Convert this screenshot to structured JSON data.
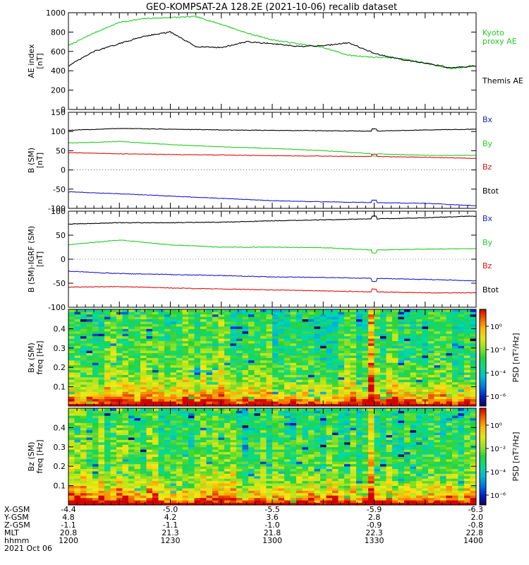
{
  "title": "GEO-KOMPSAT-2A 128.2E (2021-10-06) recalib dataset",
  "colors": {
    "black": "#000000",
    "green": "#22cc22",
    "red": "#dd1111",
    "blue": "#1a1ad0"
  },
  "chart_data": [
    {
      "type": "line",
      "ylabel": "AE index\n[nT]",
      "ylim": [
        0,
        1000
      ],
      "yticks": [
        "0",
        "200",
        "400",
        "600",
        "800",
        "1000"
      ],
      "x": [
        0,
        15,
        30,
        45,
        60,
        75,
        90,
        105,
        120,
        135,
        150,
        165,
        180,
        195,
        210,
        225,
        240
      ],
      "legend": [
        {
          "text": "Kyoto\nproxy AE",
          "color": "green"
        },
        {
          "text": "Themis AE",
          "color": "black"
        }
      ],
      "series": [
        {
          "name": "Kyoto proxy AE",
          "color": "green",
          "values": [
            660,
            790,
            900,
            940,
            950,
            960,
            880,
            790,
            720,
            680,
            640,
            560,
            540,
            530,
            480,
            420,
            450
          ]
        },
        {
          "name": "Themis AE",
          "color": "black",
          "values": [
            450,
            600,
            680,
            760,
            800,
            650,
            640,
            700,
            680,
            650,
            660,
            690,
            580,
            520,
            480,
            430,
            450
          ]
        }
      ]
    },
    {
      "type": "line",
      "ylabel": "B (SM)\n[nT]",
      "ylim": [
        -100,
        150
      ],
      "yticks": [
        "-100",
        "-50",
        "0",
        "50",
        "100",
        "150"
      ],
      "x": [
        0,
        30,
        60,
        90,
        120,
        150,
        180,
        210,
        240
      ],
      "legend": [
        {
          "text": "Bx",
          "color": "blue"
        },
        {
          "text": "By",
          "color": "green"
        },
        {
          "text": "Bz",
          "color": "red"
        },
        {
          "text": "Btot",
          "color": "black"
        }
      ],
      "series": [
        {
          "name": "Btot",
          "color": "black",
          "values": [
            103,
            108,
            106,
            104,
            103,
            102,
            101,
            104,
            106
          ]
        },
        {
          "name": "By",
          "color": "green",
          "values": [
            70,
            74,
            66,
            60,
            56,
            50,
            42,
            38,
            38
          ]
        },
        {
          "name": "Bz",
          "color": "red",
          "values": [
            45,
            42,
            40,
            39,
            37,
            36,
            35,
            33,
            30
          ]
        },
        {
          "name": "Bx",
          "color": "blue",
          "values": [
            -57,
            -62,
            -68,
            -74,
            -80,
            -83,
            -85,
            -87,
            -93
          ]
        }
      ]
    },
    {
      "type": "line",
      "ylabel": "B (SM)-IGRF (SM)\n[nT]",
      "ylim": [
        -100,
        100
      ],
      "yticks": [
        "-100",
        "-50",
        "0",
        "50",
        "100"
      ],
      "x": [
        0,
        30,
        60,
        90,
        120,
        150,
        180,
        210,
        240
      ],
      "legend": [
        {
          "text": "Bx",
          "color": "blue"
        },
        {
          "text": "By",
          "color": "green"
        },
        {
          "text": "Bz",
          "color": "red"
        },
        {
          "text": "Btot",
          "color": "black"
        }
      ],
      "series": [
        {
          "name": "Btot",
          "color": "black",
          "values": [
            73,
            76,
            76,
            77,
            80,
            82,
            84,
            86,
            90
          ]
        },
        {
          "name": "By",
          "color": "green",
          "values": [
            30,
            40,
            30,
            25,
            25,
            24,
            19,
            21,
            22
          ]
        },
        {
          "name": "Bx",
          "color": "blue",
          "values": [
            -25,
            -30,
            -32,
            -34,
            -37,
            -38,
            -40,
            -42,
            -45
          ]
        },
        {
          "name": "Bz",
          "color": "red",
          "values": [
            -58,
            -57,
            -60,
            -62,
            -64,
            -66,
            -68,
            -70,
            -70
          ]
        }
      ]
    },
    {
      "type": "heatmap",
      "ylabel": "Bx (SM)\nfreq [Hz]",
      "ylim": [
        0,
        0.5
      ],
      "yticks": [
        "0.1",
        "0.2",
        "0.3",
        "0.4"
      ],
      "colorbar": {
        "label": "PSD [nT²/Hz]",
        "ticks": [
          "10⁰",
          "10⁻²",
          "10⁻⁴",
          "10⁻⁶"
        ]
      }
    },
    {
      "type": "heatmap",
      "ylabel": "Bz (SM)\nfreq [Hz]",
      "ylim": [
        0,
        0.5
      ],
      "yticks": [
        "0.1",
        "0.2",
        "0.3",
        "0.4"
      ],
      "colorbar": {
        "label": "PSD [nT²/Hz]",
        "ticks": [
          "10⁰",
          "10⁻²",
          "10⁻⁴",
          "10⁻⁶"
        ]
      }
    }
  ],
  "ephemeris": {
    "row_labels": [
      "X-GSM",
      "Y-GSM",
      "Z-GSM",
      "MLT",
      "hhmm"
    ],
    "columns": [
      {
        "x": 0,
        "values": [
          "-4.4",
          "4.8",
          "-1.1",
          "20.8",
          "1200"
        ]
      },
      {
        "x": 60,
        "values": [
          "-5.0",
          "4.2",
          "-1.1",
          "21.3",
          "1230"
        ]
      },
      {
        "x": 120,
        "values": [
          "-5.5",
          "3.6",
          "-1.0",
          "21.8",
          "1300"
        ]
      },
      {
        "x": 180,
        "values": [
          "-5.9",
          "2.8",
          "-0.9",
          "22.3",
          "1330"
        ]
      },
      {
        "x": 240,
        "values": [
          "-6.3",
          "2.0",
          "-0.8",
          "22.8",
          "1400"
        ]
      }
    ],
    "date": "2021 Oct 06"
  }
}
